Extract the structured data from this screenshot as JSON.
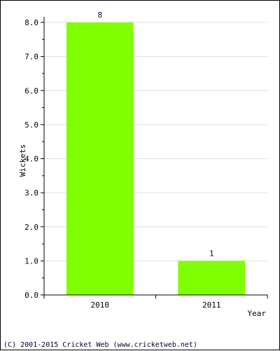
{
  "chart_data": {
    "type": "bar",
    "categories": [
      "2010",
      "2011"
    ],
    "values": [
      8,
      1
    ],
    "data_labels": [
      "8",
      "1"
    ],
    "xlabel": "Year",
    "ylabel": "Wickets",
    "ylim": [
      0,
      8
    ],
    "yticks": [
      "0.0",
      "1.0",
      "2.0",
      "3.0",
      "4.0",
      "5.0",
      "6.0",
      "7.0",
      "8.0"
    ],
    "grid": true,
    "legend": "none",
    "bar_color": "#80ff00",
    "label_color": "#000066"
  },
  "footer": {
    "copyright": "(C) 2001-2015 Cricket Web (www.cricketweb.net)"
  }
}
